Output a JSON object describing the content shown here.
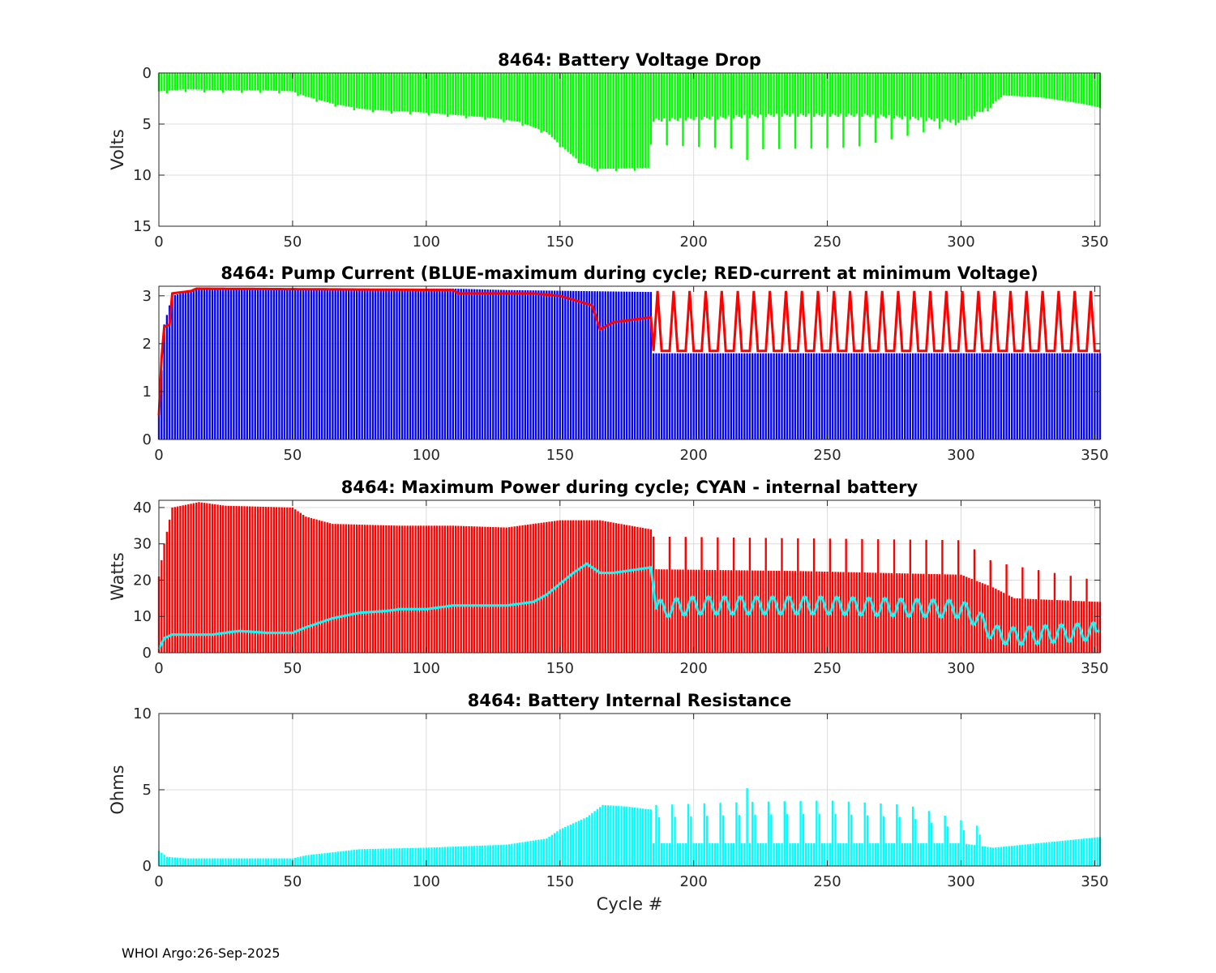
{
  "footer": "WHOI Argo:26-Sep-2025",
  "chart_data": [
    {
      "type": "bar",
      "title": "8464: Battery Voltage Drop",
      "xlabel": "",
      "ylabel": "Volts",
      "xlim": [
        0,
        352
      ],
      "ylim": [
        0,
        15
      ],
      "y_reversed": true,
      "xticks": [
        "0",
        "50",
        "100",
        "150",
        "200",
        "250",
        "300",
        "350"
      ],
      "yticks": [
        "0",
        "5",
        "10",
        "15"
      ],
      "bar_color": "#00ff00",
      "series": [
        {
          "name": "voltage drop",
          "color": "#00ff00",
          "segments": [
            [
              0,
              1.8
            ],
            [
              10,
              1.6
            ],
            [
              25,
              1.7
            ],
            [
              40,
              1.7
            ],
            [
              50,
              1.8
            ],
            [
              55,
              2.3
            ],
            [
              65,
              3.0
            ],
            [
              75,
              3.5
            ],
            [
              85,
              3.7
            ],
            [
              95,
              3.8
            ],
            [
              105,
              4.0
            ],
            [
              115,
              4.2
            ],
            [
              125,
              4.4
            ],
            [
              135,
              4.8
            ],
            [
              145,
              5.8
            ],
            [
              152,
              7.5
            ],
            [
              158,
              8.8
            ],
            [
              163,
              9.4
            ],
            [
              183,
              9.3
            ]
          ],
          "spikes": {
            "from": 184,
            "to": 312,
            "period": 6,
            "base": [
              [
                184,
                4.5
              ],
              [
                230,
                4.0
              ],
              [
                265,
                4.0
              ],
              [
                300,
                4.6
              ],
              [
                312,
                3.0
              ]
            ],
            "peak": [
              [
                184,
                7.0
              ],
              [
                220,
                7.5
              ],
              [
                260,
                7.3
              ],
              [
                300,
                5.0
              ],
              [
                312,
                3.5
              ]
            ]
          },
          "tail": [
            [
              312,
              3.0
            ],
            [
              316,
              2.2
            ],
            [
              330,
              2.4
            ],
            [
              345,
              3.0
            ],
            [
              352,
              3.4
            ]
          ]
        }
      ],
      "annotations": {
        "outlier_cycle": 220,
        "outlier_value": 8.5
      }
    },
    {
      "type": "bar",
      "title": "8464: Pump Current (BLUE-maximum during cycle; RED-current at minimum Voltage)",
      "xlabel": "",
      "ylabel": "",
      "xlim": [
        0,
        352
      ],
      "ylim": [
        0,
        3.2
      ],
      "xticks": [
        "0",
        "50",
        "100",
        "150",
        "200",
        "250",
        "300",
        "350"
      ],
      "yticks": [
        "0",
        "1",
        "2",
        "3"
      ],
      "series": [
        {
          "name": "BLUE-maximum during cycle",
          "type": "bar",
          "color": "#0000ff",
          "points": [
            [
              0,
              0.5
            ],
            [
              2,
              2.4
            ],
            [
              5,
              3.0
            ],
            [
              15,
              3.15
            ],
            [
              110,
              3.15
            ],
            [
              130,
              3.12
            ],
            [
              184,
              3.08
            ],
            [
              185,
              1.8
            ],
            [
              352,
              1.8
            ]
          ]
        },
        {
          "name": "RED-current at minimum Voltage",
          "type": "line",
          "color": "#ff0000",
          "points": [
            [
              0,
              0.5
            ],
            [
              1,
              1.7
            ],
            [
              2,
              2.35
            ],
            [
              4,
              2.4
            ],
            [
              5,
              3.05
            ],
            [
              12,
              3.1
            ],
            [
              14,
              3.15
            ],
            [
              110,
              3.12
            ],
            [
              112,
              3.05
            ],
            [
              140,
              3.05
            ],
            [
              150,
              3.0
            ],
            [
              156,
              2.9
            ],
            [
              162,
              2.8
            ],
            [
              165,
              2.3
            ],
            [
              170,
              2.45
            ],
            [
              184,
              2.55
            ],
            [
              185,
              1.85
            ],
            [
              352,
              1.85
            ]
          ],
          "oscillation": {
            "from": 185,
            "to": 350,
            "period": 6,
            "low": 1.8,
            "high": 3.05
          }
        }
      ]
    },
    {
      "type": "bar",
      "title": "8464: Maximum Power during cycle; CYAN - internal battery",
      "xlabel": "",
      "ylabel": "Watts",
      "xlim": [
        0,
        352
      ],
      "ylim": [
        0,
        42
      ],
      "xticks": [
        "0",
        "50",
        "100",
        "150",
        "200",
        "250",
        "300",
        "350"
      ],
      "yticks": [
        "0",
        "10",
        "20",
        "30",
        "40"
      ],
      "series": [
        {
          "name": "Maximum Power",
          "type": "bar",
          "color": "#ff0000",
          "points": [
            [
              0,
              21
            ],
            [
              2,
              30
            ],
            [
              5,
              40
            ],
            [
              15,
              41.5
            ],
            [
              25,
              40.5
            ],
            [
              50,
              40
            ],
            [
              55,
              37.5
            ],
            [
              65,
              35.5
            ],
            [
              90,
              35
            ],
            [
              110,
              35
            ],
            [
              130,
              34.5
            ],
            [
              150,
              36.5
            ],
            [
              165,
              36.5
            ],
            [
              184,
              34
            ],
            [
              185,
              23
            ],
            [
              240,
              22.5
            ],
            [
              300,
              21.5
            ],
            [
              312,
              18
            ],
            [
              320,
              15
            ],
            [
              352,
              14
            ]
          ],
          "spikes": {
            "from": 185,
            "to": 350,
            "period": 6,
            "high": [
              [
                185,
                32
              ],
              [
                300,
                31
              ],
              [
                312,
                25
              ],
              [
                350,
                20
              ]
            ]
          }
        },
        {
          "name": "CYAN - internal battery",
          "type": "line",
          "color": "#00ffff",
          "points": [
            [
              0,
              1
            ],
            [
              2,
              4
            ],
            [
              5,
              5
            ],
            [
              20,
              5
            ],
            [
              30,
              6
            ],
            [
              40,
              5.5
            ],
            [
              50,
              5.5
            ],
            [
              55,
              7
            ],
            [
              65,
              9.5
            ],
            [
              75,
              11
            ],
            [
              85,
              11.5
            ],
            [
              90,
              12
            ],
            [
              100,
              12
            ],
            [
              110,
              13
            ],
            [
              130,
              13
            ],
            [
              140,
              14
            ],
            [
              145,
              16
            ],
            [
              150,
              19
            ],
            [
              155,
              22
            ],
            [
              160,
              24.5
            ],
            [
              165,
              22
            ],
            [
              170,
              22
            ],
            [
              184,
              23.5
            ],
            [
              186,
              12
            ],
            [
              200,
              13
            ],
            [
              250,
              13
            ],
            [
              300,
              12
            ],
            [
              305,
              10
            ],
            [
              313,
              5
            ],
            [
              320,
              4.5
            ],
            [
              352,
              6
            ]
          ],
          "oscillation": {
            "from": 186,
            "to": 350,
            "period": 6,
            "amplitude": 2.5
          }
        }
      ]
    },
    {
      "type": "bar",
      "title": "8464: Battery Internal Resistance",
      "xlabel": "Cycle #",
      "ylabel": "Ohms",
      "xlim": [
        0,
        352
      ],
      "ylim": [
        0,
        10
      ],
      "xticks": [
        "0",
        "50",
        "100",
        "150",
        "200",
        "250",
        "300",
        "350"
      ],
      "yticks": [
        "0",
        "5",
        "10"
      ],
      "series": [
        {
          "name": "internal resistance",
          "type": "bar",
          "color": "#00ffff",
          "points": [
            [
              0,
              1.0
            ],
            [
              3,
              0.6
            ],
            [
              10,
              0.5
            ],
            [
              50,
              0.5
            ],
            [
              55,
              0.7
            ],
            [
              65,
              0.9
            ],
            [
              75,
              1.1
            ],
            [
              100,
              1.2
            ],
            [
              130,
              1.4
            ],
            [
              145,
              1.8
            ],
            [
              150,
              2.4
            ],
            [
              160,
              3.2
            ],
            [
              166,
              4.0
            ],
            [
              175,
              3.9
            ],
            [
              184,
              3.7
            ],
            [
              185,
              1.5
            ],
            [
              300,
              1.5
            ],
            [
              312,
              1.2
            ],
            [
              352,
              1.9
            ]
          ],
          "spikes": {
            "from": 186,
            "to": 310,
            "period": 6,
            "high": [
              [
                186,
                4.0
              ],
              [
                220,
                4.2
              ],
              [
                250,
                4.3
              ],
              [
                280,
                4.0
              ],
              [
                300,
                3.0
              ],
              [
                310,
                2.4
              ]
            ]
          },
          "outlier": [
            220,
            5.1
          ]
        }
      ]
    }
  ]
}
